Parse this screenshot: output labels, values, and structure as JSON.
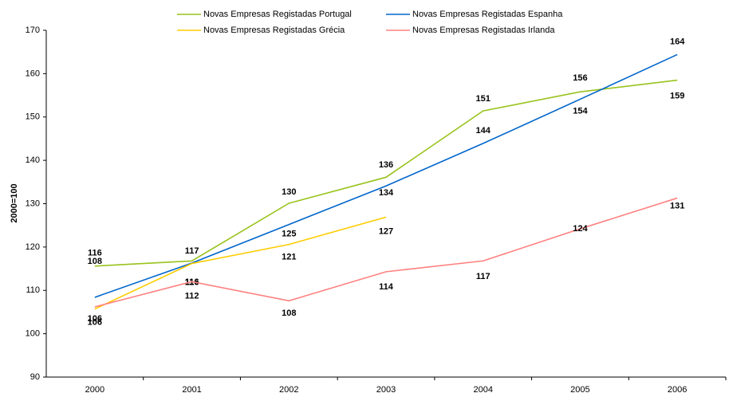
{
  "chart_data": {
    "type": "line",
    "y_label": "2000=100",
    "categories": [
      "2000",
      "2001",
      "2002",
      "2003",
      "2004",
      "2005",
      "2006"
    ],
    "ylim": [
      90,
      170
    ],
    "yticks": [
      90,
      100,
      110,
      120,
      130,
      140,
      150,
      160,
      170
    ],
    "series": [
      {
        "name": "Novas Empresas Registadas Portugal",
        "color": "#99c31c",
        "values": [
          115.6,
          116.8,
          130.1,
          136.1,
          151.4,
          155.8,
          158.5
        ],
        "value_labels": [
          "116",
          "117",
          "130",
          "136",
          "151",
          "156",
          "159"
        ]
      },
      {
        "name": "Novas Empresas Registadas Espanha",
        "color": "#0066cc",
        "values": [
          108.4,
          116.3,
          125.2,
          134.1,
          143.9,
          154.1,
          164.4
        ],
        "value_labels": [
          "108",
          "116",
          "125",
          "134",
          "144",
          "154",
          "164"
        ]
      },
      {
        "name": "Novas Empresas Registadas Grécia",
        "color": "#ffcc00",
        "values": [
          105.7,
          116.2,
          120.6,
          126.9,
          null,
          null,
          null
        ],
        "value_labels": [
          "106",
          "116",
          "121",
          "127",
          null,
          null,
          null
        ]
      },
      {
        "name": "Novas Empresas Registadas Irlanda",
        "color": "#ff8080",
        "values": [
          106.2,
          112.0,
          107.6,
          114.3,
          116.8,
          124.2,
          131.3
        ],
        "value_labels": [
          "106",
          "112",
          "108",
          "114",
          "117",
          "124",
          "131"
        ]
      }
    ]
  }
}
